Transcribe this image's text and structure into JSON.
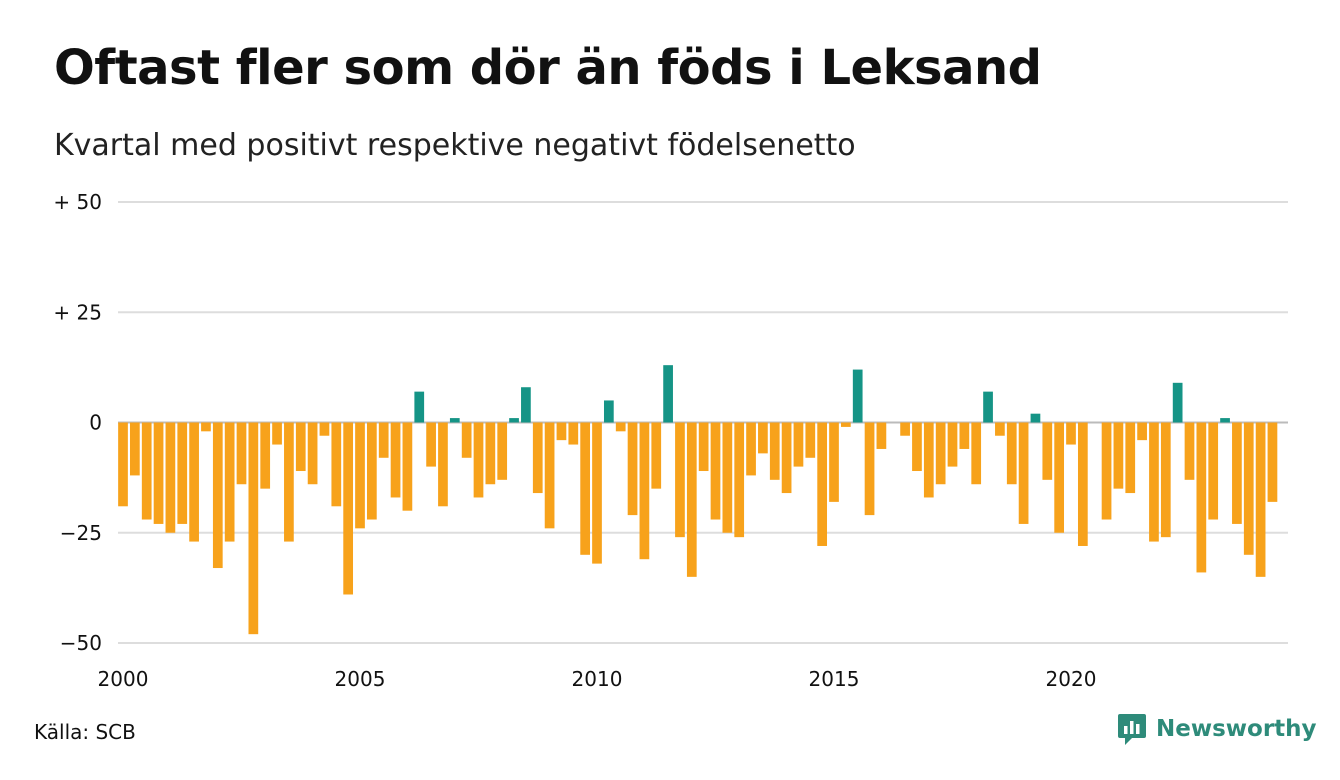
{
  "title": "Oftast fler som dör än föds i Leksand",
  "subtitle": "Kvartal med positivt respektive negativt födelsenetto",
  "source": "Källa: SCB",
  "brand": "Newsworthy",
  "colors": {
    "positive": "#159486",
    "negative": "#f7a21b",
    "grid": "#dddddd",
    "brand": "#2e8b7a"
  },
  "chart_data": {
    "type": "bar",
    "title": "Oftast fler som dör än föds i Leksand",
    "subtitle": "Kvartal med positivt respektive negativt födelsenetto",
    "xlabel": "",
    "ylabel": "",
    "ylim": [
      -50,
      50
    ],
    "xlim": [
      2000,
      2024.75
    ],
    "grid": true,
    "y_ticks": [
      {
        "value": 50,
        "label": "+ 50"
      },
      {
        "value": 25,
        "label": "+ 25"
      },
      {
        "value": 0,
        "label": "0"
      },
      {
        "value": -25,
        "label": "−25"
      },
      {
        "value": -50,
        "label": "−50"
      }
    ],
    "x_ticks": [
      {
        "value": 2000,
        "label": "2000"
      },
      {
        "value": 2005,
        "label": "2005"
      },
      {
        "value": 2010,
        "label": "2010"
      },
      {
        "value": 2015,
        "label": "2015"
      },
      {
        "value": 2020,
        "label": "2020"
      }
    ],
    "start_year": 2000,
    "periods_per_year": 4,
    "values": [
      -19,
      -12,
      -22,
      -23,
      -25,
      -23,
      -27,
      -2,
      -33,
      -27,
      -14,
      -48,
      -15,
      -5,
      -27,
      -11,
      -14,
      -3,
      -19,
      -39,
      -24,
      -22,
      -8,
      -17,
      -20,
      7,
      -10,
      -19,
      1,
      -8,
      -17,
      -14,
      -13,
      1,
      8,
      -16,
      -24,
      -4,
      -5,
      -30,
      -32,
      5,
      -2,
      -21,
      -31,
      -15,
      13,
      -26,
      -35,
      -11,
      -22,
      -25,
      -26,
      -12,
      -7,
      -13,
      -16,
      -10,
      -8,
      -28,
      -18,
      -1,
      12,
      -21,
      -6,
      0,
      -3,
      -11,
      -17,
      -14,
      -10,
      -6,
      -14,
      7,
      -3,
      -14,
      -23,
      2,
      -13,
      -25,
      -5,
      -28,
      0,
      -22,
      -15,
      -16,
      -4,
      -27,
      -26,
      9,
      -13,
      -34,
      -22,
      1,
      -23,
      -30,
      -35,
      -18
    ]
  }
}
